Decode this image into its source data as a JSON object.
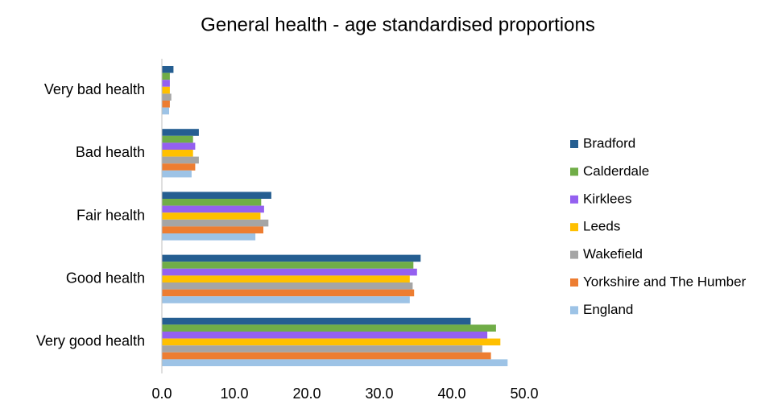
{
  "chart_data": {
    "type": "hbar",
    "title": "General health - age standardised proportions",
    "categories": [
      "Very bad health",
      "Bad health",
      "Fair health",
      "Good health",
      "Very good health"
    ],
    "series": [
      {
        "name": "Bradford",
        "color": "#255e91",
        "values": [
          1.6,
          5.1,
          15.1,
          35.7,
          42.6
        ]
      },
      {
        "name": "Calderdale",
        "color": "#70ad47",
        "values": [
          1.1,
          4.3,
          13.7,
          34.7,
          46.1
        ]
      },
      {
        "name": "Kirklees",
        "color": "#9460f0",
        "values": [
          1.1,
          4.6,
          14.1,
          35.2,
          44.9
        ]
      },
      {
        "name": "Leeds",
        "color": "#ffc000",
        "values": [
          1.1,
          4.3,
          13.6,
          34.2,
          46.7
        ]
      },
      {
        "name": "Wakefield",
        "color": "#a5a5a5",
        "values": [
          1.3,
          5.1,
          14.7,
          34.6,
          44.2
        ]
      },
      {
        "name": "Yorkshire and The Humber",
        "color": "#ed7d31",
        "values": [
          1.1,
          4.6,
          14.0,
          34.8,
          45.4
        ]
      },
      {
        "name": "England",
        "color": "#9dc3e6",
        "values": [
          1.0,
          4.1,
          12.9,
          34.2,
          47.7
        ]
      }
    ],
    "xlim": [
      0,
      50
    ],
    "xticks": [
      {
        "value": 0,
        "label": "0.0"
      },
      {
        "value": 10,
        "label": "10.0"
      },
      {
        "value": 20,
        "label": "20.0"
      },
      {
        "value": 30,
        "label": "30.0"
      },
      {
        "value": 40,
        "label": "40.0"
      },
      {
        "value": 50,
        "label": "50.0"
      }
    ],
    "grid": false,
    "legend": "right"
  }
}
